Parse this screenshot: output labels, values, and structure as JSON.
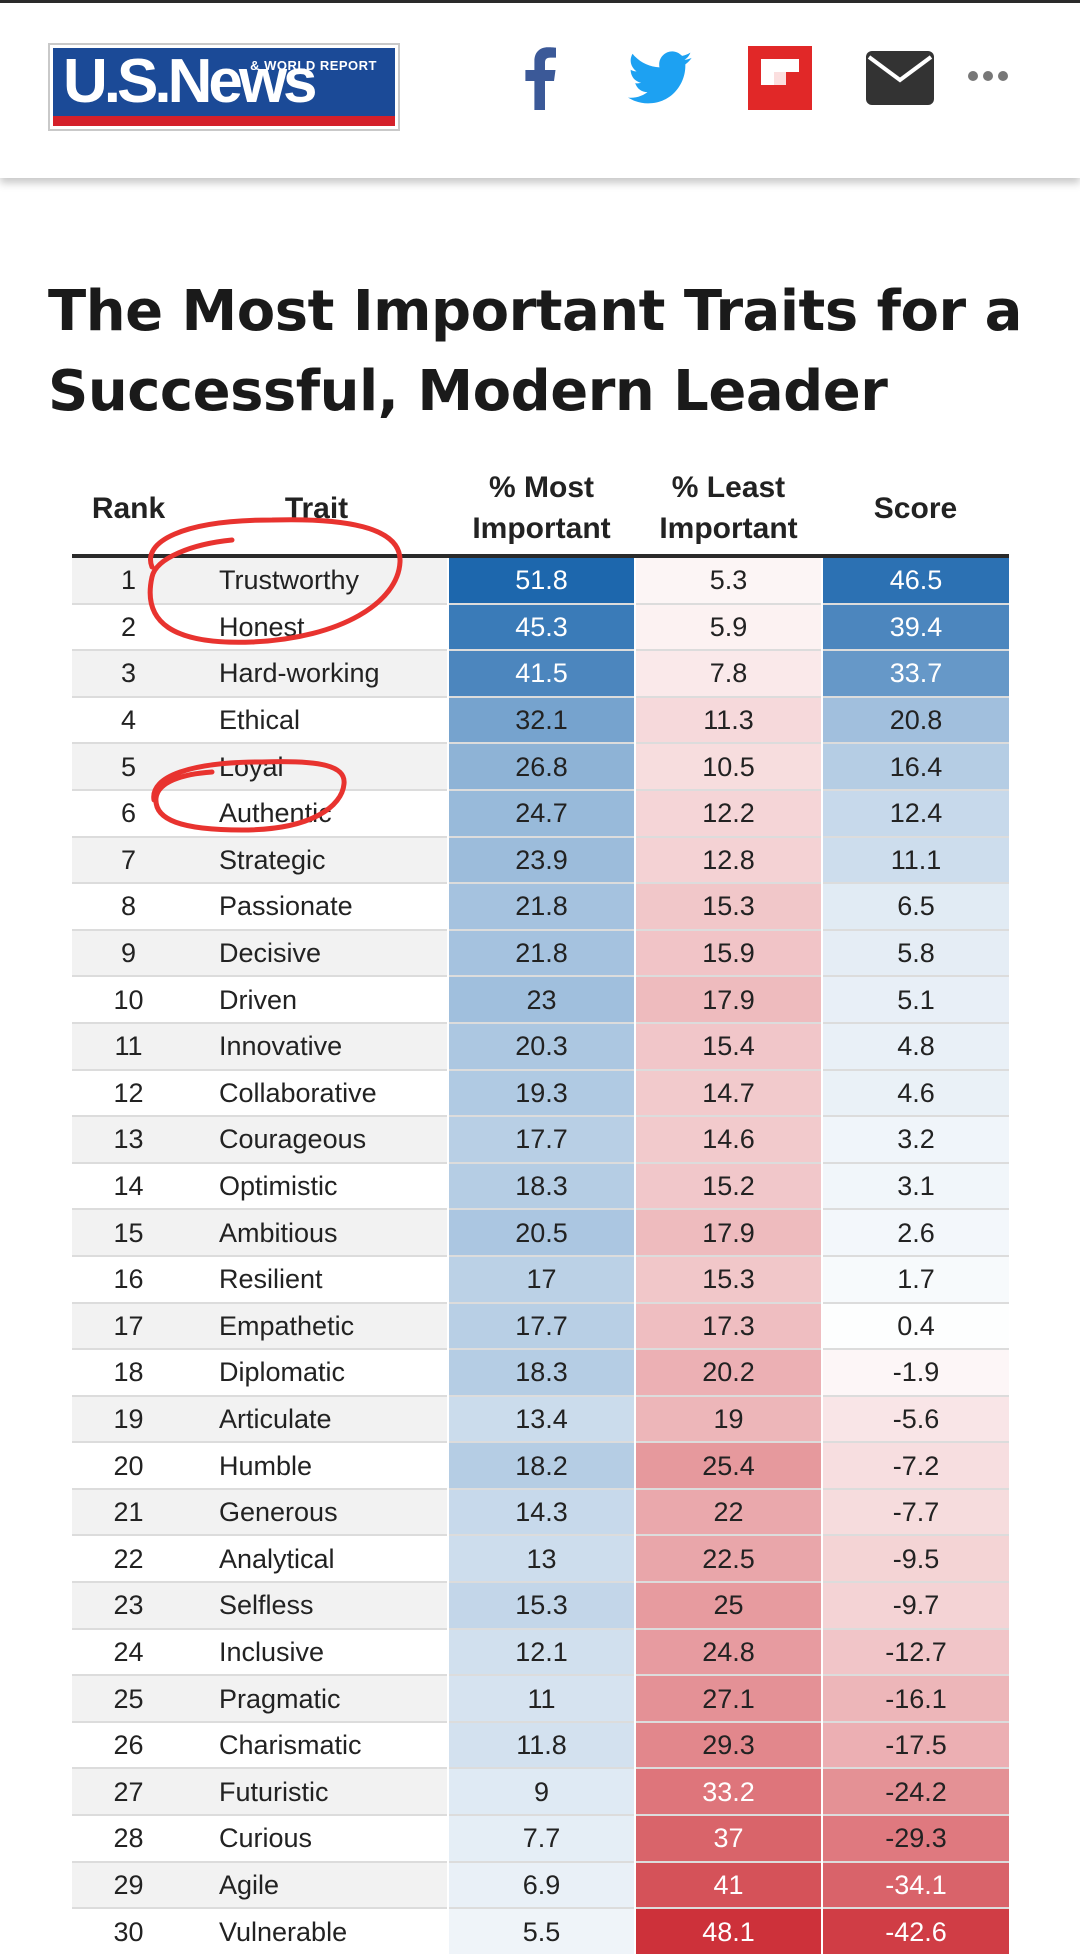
{
  "header": {
    "logo": {
      "main": "U.S.News",
      "sub": "& WORLD REPORT"
    },
    "share_icons": [
      "facebook-icon",
      "twitter-icon",
      "flipboard-icon",
      "email-icon",
      "more-icon"
    ],
    "colors": {
      "brand_blue": "#1b4a97",
      "brand_red": "#d4202a",
      "facebook": "#3b5998",
      "twitter": "#1da1f2",
      "flipboard": "#e12828",
      "email": "#333333"
    }
  },
  "article": {
    "title": "The Most Important Traits for a Successful, Modern Leader"
  },
  "table": {
    "columns": [
      "Rank",
      "Trait",
      "% Most Important",
      "% Least Important",
      "Score"
    ],
    "rows": [
      {
        "rank": "1",
        "trait": "Trustworthy",
        "most": "51.8",
        "least": "5.3",
        "score": "46.5"
      },
      {
        "rank": "2",
        "trait": "Honest",
        "most": "45.3",
        "least": "5.9",
        "score": "39.4"
      },
      {
        "rank": "3",
        "trait": "Hard-working",
        "most": "41.5",
        "least": "7.8",
        "score": "33.7"
      },
      {
        "rank": "4",
        "trait": "Ethical",
        "most": "32.1",
        "least": "11.3",
        "score": "20.8"
      },
      {
        "rank": "5",
        "trait": "Loyal",
        "most": "26.8",
        "least": "10.5",
        "score": "16.4"
      },
      {
        "rank": "6",
        "trait": "Authentic",
        "most": "24.7",
        "least": "12.2",
        "score": "12.4"
      },
      {
        "rank": "7",
        "trait": "Strategic",
        "most": "23.9",
        "least": "12.8",
        "score": "11.1"
      },
      {
        "rank": "8",
        "trait": "Passionate",
        "most": "21.8",
        "least": "15.3",
        "score": "6.5"
      },
      {
        "rank": "9",
        "trait": "Decisive",
        "most": "21.8",
        "least": "15.9",
        "score": "5.8"
      },
      {
        "rank": "10",
        "trait": "Driven",
        "most": "23",
        "least": "17.9",
        "score": "5.1"
      },
      {
        "rank": "11",
        "trait": "Innovative",
        "most": "20.3",
        "least": "15.4",
        "score": "4.8"
      },
      {
        "rank": "12",
        "trait": "Collaborative",
        "most": "19.3",
        "least": "14.7",
        "score": "4.6"
      },
      {
        "rank": "13",
        "trait": "Courageous",
        "most": "17.7",
        "least": "14.6",
        "score": "3.2"
      },
      {
        "rank": "14",
        "trait": "Optimistic",
        "most": "18.3",
        "least": "15.2",
        "score": "3.1"
      },
      {
        "rank": "15",
        "trait": "Ambitious",
        "most": "20.5",
        "least": "17.9",
        "score": "2.6"
      },
      {
        "rank": "16",
        "trait": "Resilient",
        "most": "17",
        "least": "15.3",
        "score": "1.7"
      },
      {
        "rank": "17",
        "trait": "Empathetic",
        "most": "17.7",
        "least": "17.3",
        "score": "0.4"
      },
      {
        "rank": "18",
        "trait": "Diplomatic",
        "most": "18.3",
        "least": "20.2",
        "score": "-1.9"
      },
      {
        "rank": "19",
        "trait": "Articulate",
        "most": "13.4",
        "least": "19",
        "score": "-5.6"
      },
      {
        "rank": "20",
        "trait": "Humble",
        "most": "18.2",
        "least": "25.4",
        "score": "-7.2"
      },
      {
        "rank": "21",
        "trait": "Generous",
        "most": "14.3",
        "least": "22",
        "score": "-7.7"
      },
      {
        "rank": "22",
        "trait": "Analytical",
        "most": "13",
        "least": "22.5",
        "score": "-9.5"
      },
      {
        "rank": "23",
        "trait": "Selfless",
        "most": "15.3",
        "least": "25",
        "score": "-9.7"
      },
      {
        "rank": "24",
        "trait": "Inclusive",
        "most": "12.1",
        "least": "24.8",
        "score": "-12.7"
      },
      {
        "rank": "25",
        "trait": "Pragmatic",
        "most": "11",
        "least": "27.1",
        "score": "-16.1"
      },
      {
        "rank": "26",
        "trait": "Charismatic",
        "most": "11.8",
        "least": "29.3",
        "score": "-17.5"
      },
      {
        "rank": "27",
        "trait": "Futuristic",
        "most": "9",
        "least": "33.2",
        "score": "-24.2"
      },
      {
        "rank": "28",
        "trait": "Curious",
        "most": "7.7",
        "least": "37",
        "score": "-29.3"
      },
      {
        "rank": "29",
        "trait": "Agile",
        "most": "6.9",
        "least": "41",
        "score": "-34.1"
      },
      {
        "rank": "30",
        "trait": "Vulnerable",
        "most": "5.5",
        "least": "48.1",
        "score": "-42.6"
      }
    ],
    "heatmap_colors": {
      "blue": "#1c66ad",
      "red": "#cc2d36",
      "neutral": "#ffffff"
    },
    "annotation_color": "#e8332f"
  }
}
